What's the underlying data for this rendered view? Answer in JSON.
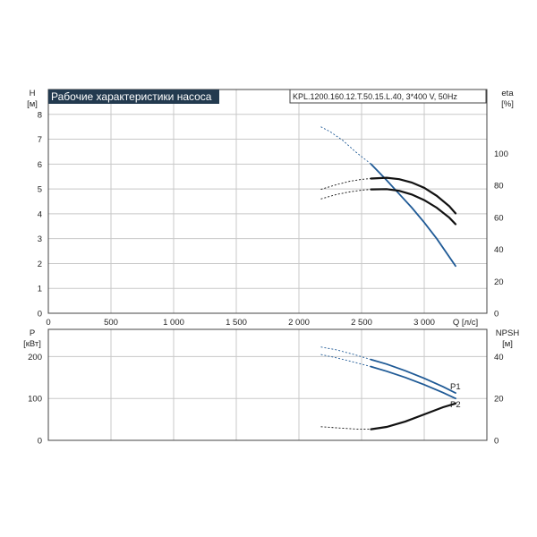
{
  "chart_data": [
    {
      "type": "line",
      "title": "Рабочие характеристики насоса",
      "subtitle": "KPL.1200.160.12.T.50.15.L.40, 3*400 V, 50Hz",
      "xlabel": "Q [л/с]",
      "ylabel_left": [
        "H",
        "[м]"
      ],
      "ylabel_right": [
        "eta",
        "[%]"
      ],
      "xlim": [
        0,
        3500
      ],
      "ylim_left": [
        0,
        9
      ],
      "ylim_right": [
        0,
        140
      ],
      "x_ticks": [
        "0",
        "500",
        "1 000",
        "1 500",
        "2 000",
        "2 500",
        "3 000"
      ],
      "y_ticks_left": [
        "0",
        "1",
        "2",
        "3",
        "4",
        "5",
        "6",
        "7",
        "8"
      ],
      "y_ticks_right": [
        "0",
        "20",
        "40",
        "60",
        "80",
        "100"
      ],
      "grid": true,
      "series": [
        {
          "axis": "left",
          "color": "#1f5a96",
          "dashed": {
            "x": [
              2175,
              2250,
              2350,
              2450,
              2575
            ],
            "y": [
              7.5,
              7.3,
              6.95,
              6.5,
              6.0
            ]
          },
          "solid": {
            "x": [
              2575,
              2700,
              2800,
              2900,
              3000,
              3100,
              3250
            ],
            "y": [
              6.0,
              5.35,
              4.8,
              4.25,
              3.65,
              3.0,
              1.9
            ]
          }
        },
        {
          "axis": "right",
          "color": "#111111",
          "dashed": {
            "x": [
              2175,
              2300,
              2400,
              2500,
              2575
            ],
            "y": [
              77.5,
              80.5,
              82.5,
              83.8,
              84.3
            ]
          },
          "solid": {
            "x": [
              2575,
              2700,
              2800,
              2900,
              3000,
              3100,
              3200,
              3250
            ],
            "y": [
              84.3,
              84.8,
              83.9,
              81.8,
              78.5,
              73.5,
              67.0,
              62.5
            ]
          }
        },
        {
          "axis": "right",
          "color": "#111111",
          "dashed": {
            "x": [
              2175,
              2300,
              2400,
              2500,
              2575
            ],
            "y": [
              71.5,
              74.3,
              75.9,
              77.0,
              77.5
            ]
          },
          "solid": {
            "x": [
              2575,
              2700,
              2800,
              2900,
              3000,
              3100,
              3200,
              3250
            ],
            "y": [
              77.5,
              77.7,
              76.6,
              74.3,
              70.8,
              66.0,
              59.8,
              55.7
            ]
          }
        }
      ]
    },
    {
      "type": "line",
      "xlim": [
        0,
        3500
      ],
      "ylabel_left": [
        "P",
        "[кВт]"
      ],
      "ylabel_right": [
        "NPSH",
        "[м]"
      ],
      "ylim_left": [
        0,
        265
      ],
      "ylim_right": [
        0,
        53
      ],
      "y_ticks_left": [
        "0",
        "100",
        "200"
      ],
      "y_ticks_right": [
        "0",
        "20",
        "40"
      ],
      "grid": true,
      "series": [
        {
          "name": "P1",
          "axis": "left",
          "color": "#1f5a96",
          "dashed": {
            "x": [
              2175,
              2300,
              2450,
              2575
            ],
            "y": [
              223,
              216,
              204,
              193
            ]
          },
          "solid": {
            "x": [
              2575,
              2700,
              2850,
              3000,
              3150,
              3250
            ],
            "y": [
              193,
              182,
              166,
              148,
              128,
              113
            ]
          }
        },
        {
          "name": "P2",
          "axis": "left",
          "color": "#1f5a96",
          "dashed": {
            "x": [
              2175,
              2300,
              2450,
              2575
            ],
            "y": [
              205,
              197,
              186,
              176
            ]
          },
          "solid": {
            "x": [
              2575,
              2700,
              2850,
              3000,
              3150,
              3250
            ],
            "y": [
              176,
              165,
              150,
              133,
              114,
              100
            ]
          }
        },
        {
          "axis": "right",
          "color": "#111111",
          "dashed": {
            "x": [
              2175,
              2300,
              2450,
              2575
            ],
            "y": [
              6.5,
              6.0,
              5.4,
              5.3
            ]
          },
          "solid": {
            "x": [
              2575,
              2700,
              2850,
              3000,
              3150,
              3250
            ],
            "y": [
              5.3,
              6.4,
              9.0,
              12.4,
              15.8,
              17.6
            ]
          }
        }
      ]
    }
  ]
}
